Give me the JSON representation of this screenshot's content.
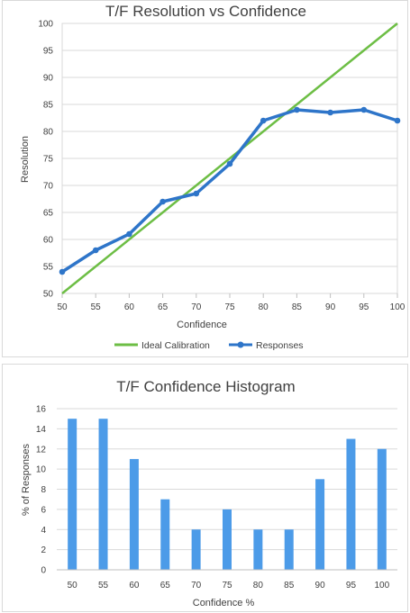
{
  "chart_data": [
    {
      "type": "line",
      "title": "T/F Resolution vs Confidence",
      "xlabel": "Confidence",
      "ylabel": "Resolution",
      "categories": [
        "50",
        "55",
        "60",
        "65",
        "70",
        "75",
        "80",
        "85",
        "90",
        "95",
        "100"
      ],
      "xlim": [
        50,
        100
      ],
      "ylim": [
        50,
        100
      ],
      "yticks": [
        "50",
        "55",
        "60",
        "65",
        "70",
        "75",
        "80",
        "85",
        "90",
        "95",
        "100"
      ],
      "grid": true,
      "legend": "bottom",
      "series": [
        {
          "name": "Ideal Calibration",
          "color": "#6DBE45",
          "markers": false,
          "values": [
            50,
            55,
            60,
            65,
            70,
            75,
            80,
            85,
            90,
            95,
            100
          ]
        },
        {
          "name": "Responses",
          "color": "#2E75C9",
          "markers": true,
          "values": [
            54,
            58,
            61,
            67,
            68.5,
            74,
            82,
            84,
            83.5,
            84,
            82
          ]
        }
      ]
    },
    {
      "type": "bar",
      "title": "T/F Confidence Histogram",
      "xlabel": "Confidence %",
      "ylabel": "% of Responses",
      "categories": [
        "50",
        "55",
        "60",
        "65",
        "70",
        "75",
        "80",
        "85",
        "90",
        "95",
        "100"
      ],
      "ylim": [
        0,
        16
      ],
      "yticks": [
        "0",
        "2",
        "4",
        "6",
        "8",
        "10",
        "12",
        "14",
        "16"
      ],
      "grid": true,
      "color": "#4C9BE8",
      "values": [
        15,
        15,
        11,
        7,
        4,
        6,
        4,
        4,
        9,
        13,
        12
      ]
    }
  ]
}
